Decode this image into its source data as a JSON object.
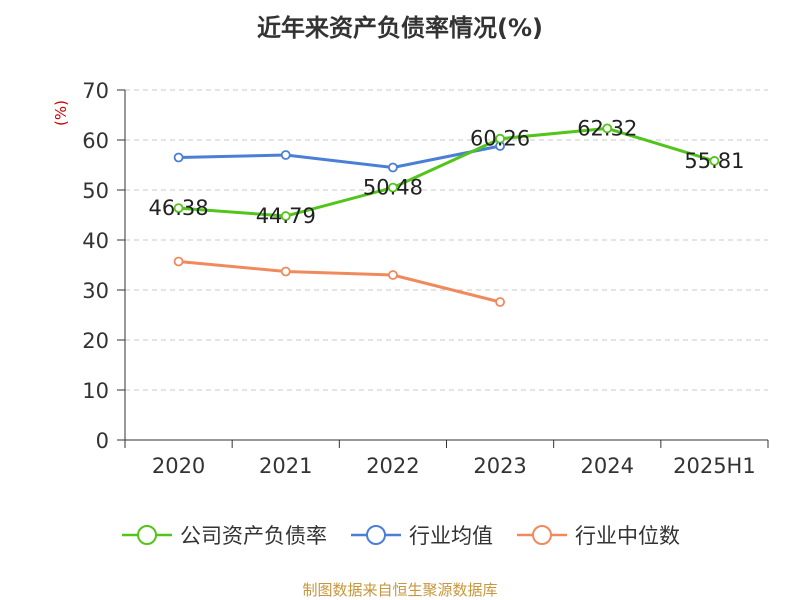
{
  "chart_data": {
    "type": "line",
    "title": "近年来资产负债率情况(%)",
    "ylabel": "(%)",
    "xlabel": "",
    "categories": [
      "2020",
      "2021",
      "2022",
      "2023",
      "2024",
      "2025H1"
    ],
    "ylim": [
      0,
      70
    ],
    "yticks": [
      0,
      10,
      20,
      30,
      40,
      50,
      60,
      70
    ],
    "grid": true,
    "legend_position": "bottom",
    "series": [
      {
        "name": "公司资产负债率",
        "color": "#52c41a",
        "values": [
          46.38,
          44.79,
          50.48,
          60.26,
          62.32,
          55.81
        ],
        "show_labels": true
      },
      {
        "name": "行业均值",
        "color": "#4a7fd6",
        "values": [
          56.5,
          57.0,
          54.5,
          58.8,
          null,
          null
        ],
        "show_labels": false
      },
      {
        "name": "行业中位数",
        "color": "#f08a5d",
        "values": [
          35.7,
          33.7,
          33.0,
          27.6,
          null,
          null
        ],
        "show_labels": false
      }
    ]
  },
  "footer": {
    "source": "制图数据来自恒生聚源数据库"
  }
}
